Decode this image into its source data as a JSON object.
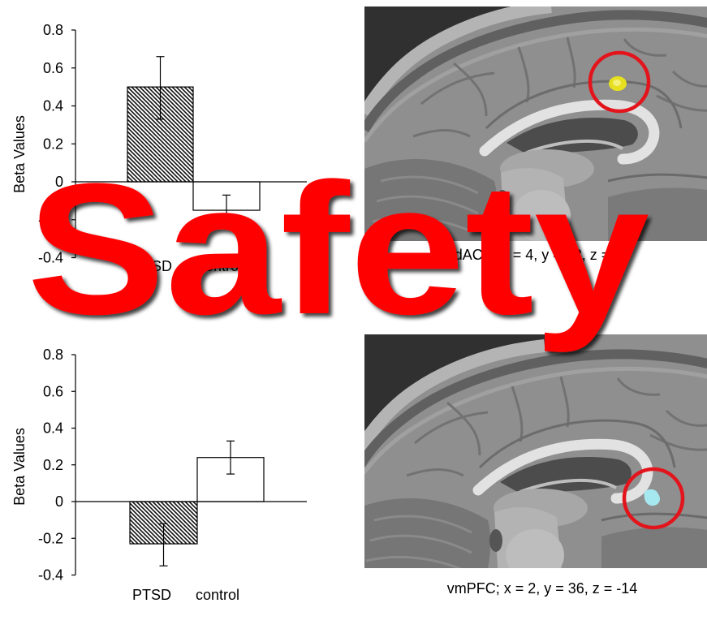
{
  "overlay": {
    "text": "Safety",
    "color": "#ff0000"
  },
  "chart_data": [
    {
      "type": "bar",
      "categories": [
        "PTSD",
        "control"
      ],
      "values": [
        0.5,
        -0.15
      ],
      "error_high": [
        0.66,
        -0.07
      ],
      "error_low": [
        0.33,
        -0.22
      ],
      "bar_fill": [
        "hatched",
        "white"
      ],
      "ylabel": "Beta Values",
      "ylim": [
        -0.4,
        0.8
      ],
      "yticks": [
        "0.8",
        "0.6",
        "0.4",
        "0.2",
        "0",
        "-0.2",
        "-0.4"
      ],
      "grid": false
    },
    {
      "type": "bar",
      "categories": [
        "PTSD",
        "control"
      ],
      "values": [
        -0.23,
        0.24
      ],
      "error_high": [
        -0.12,
        0.33
      ],
      "error_low": [
        -0.35,
        0.15
      ],
      "bar_fill": [
        "hatched",
        "white"
      ],
      "ylabel": "Beta Values",
      "ylim": [
        -0.4,
        0.8
      ],
      "yticks": [
        "0.8",
        "0.6",
        "0.4",
        "0.2",
        "0",
        "-0.2",
        "-0.4"
      ],
      "grid": false
    }
  ],
  "brain_images": [
    {
      "caption": "dACC; x = 4, y = 22, z = 44",
      "cluster_color": "#e6e01e",
      "circle_color": "#e3141b"
    },
    {
      "caption": "vmPFC; x = 2, y = 36, z = -14",
      "cluster_color": "#a6e8f0",
      "circle_color": "#e3141b"
    }
  ]
}
